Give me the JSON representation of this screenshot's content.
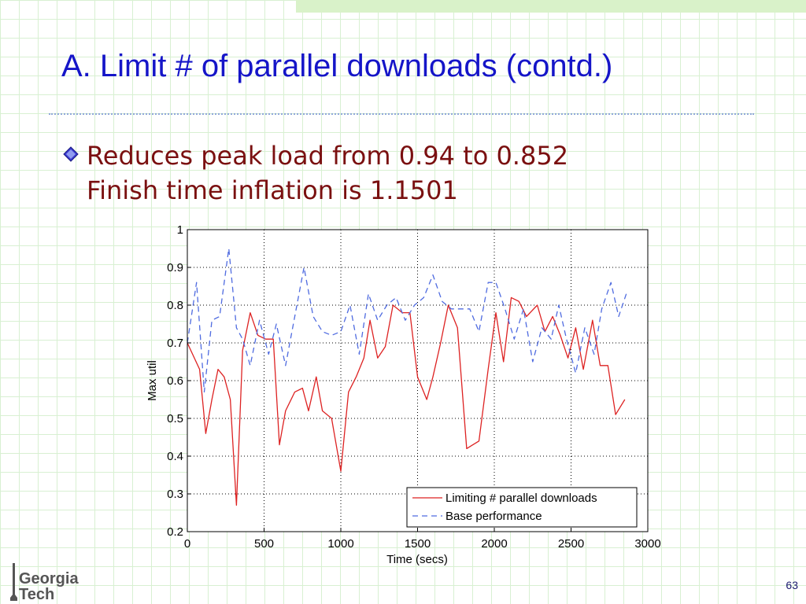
{
  "slide": {
    "title": "A. Limit # of parallel downloads (contd.)",
    "bullet_line1": "Reduces peak load from 0.94 to 0.852",
    "bullet_line2": "Finish time inflation is 1.1501",
    "page_number": "63",
    "logo_text_1": "Georgia",
    "logo_text_2": "Tech"
  },
  "colors": {
    "title": "#1515c8",
    "bullet_text": "#7a1010",
    "series_limit": "#dd2222",
    "series_base": "#4f6be0"
  },
  "chart_data": {
    "type": "line",
    "xlabel": "Time (secs)",
    "ylabel": "Max util",
    "xlim": [
      0,
      3000
    ],
    "ylim": [
      0.2,
      1
    ],
    "xticks": [
      0,
      500,
      1000,
      1500,
      2000,
      2500,
      3000
    ],
    "yticks": [
      0.2,
      0.3,
      0.4,
      0.5,
      0.6,
      0.7,
      0.8,
      0.9,
      1
    ],
    "grid": true,
    "legend_position": "bottom-right",
    "series": [
      {
        "name": "Limiting # parallel downloads",
        "style": "solid",
        "color": "#dd2222",
        "points": [
          [
            0,
            0.7
          ],
          [
            80,
            0.63
          ],
          [
            120,
            0.46
          ],
          [
            160,
            0.55
          ],
          [
            200,
            0.63
          ],
          [
            240,
            0.61
          ],
          [
            280,
            0.55
          ],
          [
            320,
            0.27
          ],
          [
            360,
            0.68
          ],
          [
            410,
            0.78
          ],
          [
            460,
            0.72
          ],
          [
            510,
            0.71
          ],
          [
            560,
            0.71
          ],
          [
            600,
            0.43
          ],
          [
            640,
            0.52
          ],
          [
            700,
            0.57
          ],
          [
            750,
            0.58
          ],
          [
            790,
            0.52
          ],
          [
            840,
            0.61
          ],
          [
            880,
            0.52
          ],
          [
            940,
            0.5
          ],
          [
            1000,
            0.36
          ],
          [
            1050,
            0.57
          ],
          [
            1100,
            0.61
          ],
          [
            1150,
            0.66
          ],
          [
            1190,
            0.76
          ],
          [
            1240,
            0.66
          ],
          [
            1290,
            0.69
          ],
          [
            1340,
            0.8
          ],
          [
            1400,
            0.78
          ],
          [
            1450,
            0.78
          ],
          [
            1500,
            0.61
          ],
          [
            1560,
            0.55
          ],
          [
            1600,
            0.61
          ],
          [
            1650,
            0.7
          ],
          [
            1700,
            0.8
          ],
          [
            1760,
            0.74
          ],
          [
            1820,
            0.42
          ],
          [
            1860,
            0.43
          ],
          [
            1900,
            0.44
          ],
          [
            1960,
            0.63
          ],
          [
            2010,
            0.78
          ],
          [
            2060,
            0.65
          ],
          [
            2110,
            0.82
          ],
          [
            2160,
            0.81
          ],
          [
            2210,
            0.77
          ],
          [
            2280,
            0.8
          ],
          [
            2330,
            0.73
          ],
          [
            2380,
            0.77
          ],
          [
            2430,
            0.72
          ],
          [
            2480,
            0.66
          ],
          [
            2530,
            0.74
          ],
          [
            2580,
            0.63
          ],
          [
            2640,
            0.76
          ],
          [
            2690,
            0.64
          ],
          [
            2740,
            0.64
          ],
          [
            2790,
            0.51
          ],
          [
            2850,
            0.55
          ]
        ]
      },
      {
        "name": "Base performance",
        "style": "dashed",
        "color": "#4f6be0",
        "points": [
          [
            0,
            0.7
          ],
          [
            60,
            0.86
          ],
          [
            110,
            0.57
          ],
          [
            160,
            0.76
          ],
          [
            210,
            0.77
          ],
          [
            270,
            0.95
          ],
          [
            320,
            0.74
          ],
          [
            360,
            0.71
          ],
          [
            410,
            0.64
          ],
          [
            470,
            0.76
          ],
          [
            530,
            0.67
          ],
          [
            580,
            0.75
          ],
          [
            640,
            0.64
          ],
          [
            700,
            0.77
          ],
          [
            760,
            0.9
          ],
          [
            820,
            0.77
          ],
          [
            880,
            0.73
          ],
          [
            940,
            0.72
          ],
          [
            1000,
            0.73
          ],
          [
            1060,
            0.8
          ],
          [
            1120,
            0.67
          ],
          [
            1180,
            0.83
          ],
          [
            1240,
            0.76
          ],
          [
            1300,
            0.8
          ],
          [
            1360,
            0.82
          ],
          [
            1420,
            0.76
          ],
          [
            1480,
            0.8
          ],
          [
            1540,
            0.82
          ],
          [
            1600,
            0.88
          ],
          [
            1660,
            0.81
          ],
          [
            1720,
            0.79
          ],
          [
            1780,
            0.79
          ],
          [
            1840,
            0.79
          ],
          [
            1900,
            0.73
          ],
          [
            1960,
            0.86
          ],
          [
            2010,
            0.86
          ],
          [
            2070,
            0.79
          ],
          [
            2130,
            0.71
          ],
          [
            2190,
            0.79
          ],
          [
            2250,
            0.65
          ],
          [
            2310,
            0.74
          ],
          [
            2370,
            0.71
          ],
          [
            2420,
            0.8
          ],
          [
            2470,
            0.71
          ],
          [
            2530,
            0.62
          ],
          [
            2590,
            0.74
          ],
          [
            2650,
            0.67
          ],
          [
            2700,
            0.79
          ],
          [
            2760,
            0.86
          ],
          [
            2810,
            0.77
          ],
          [
            2860,
            0.83
          ]
        ]
      }
    ]
  }
}
